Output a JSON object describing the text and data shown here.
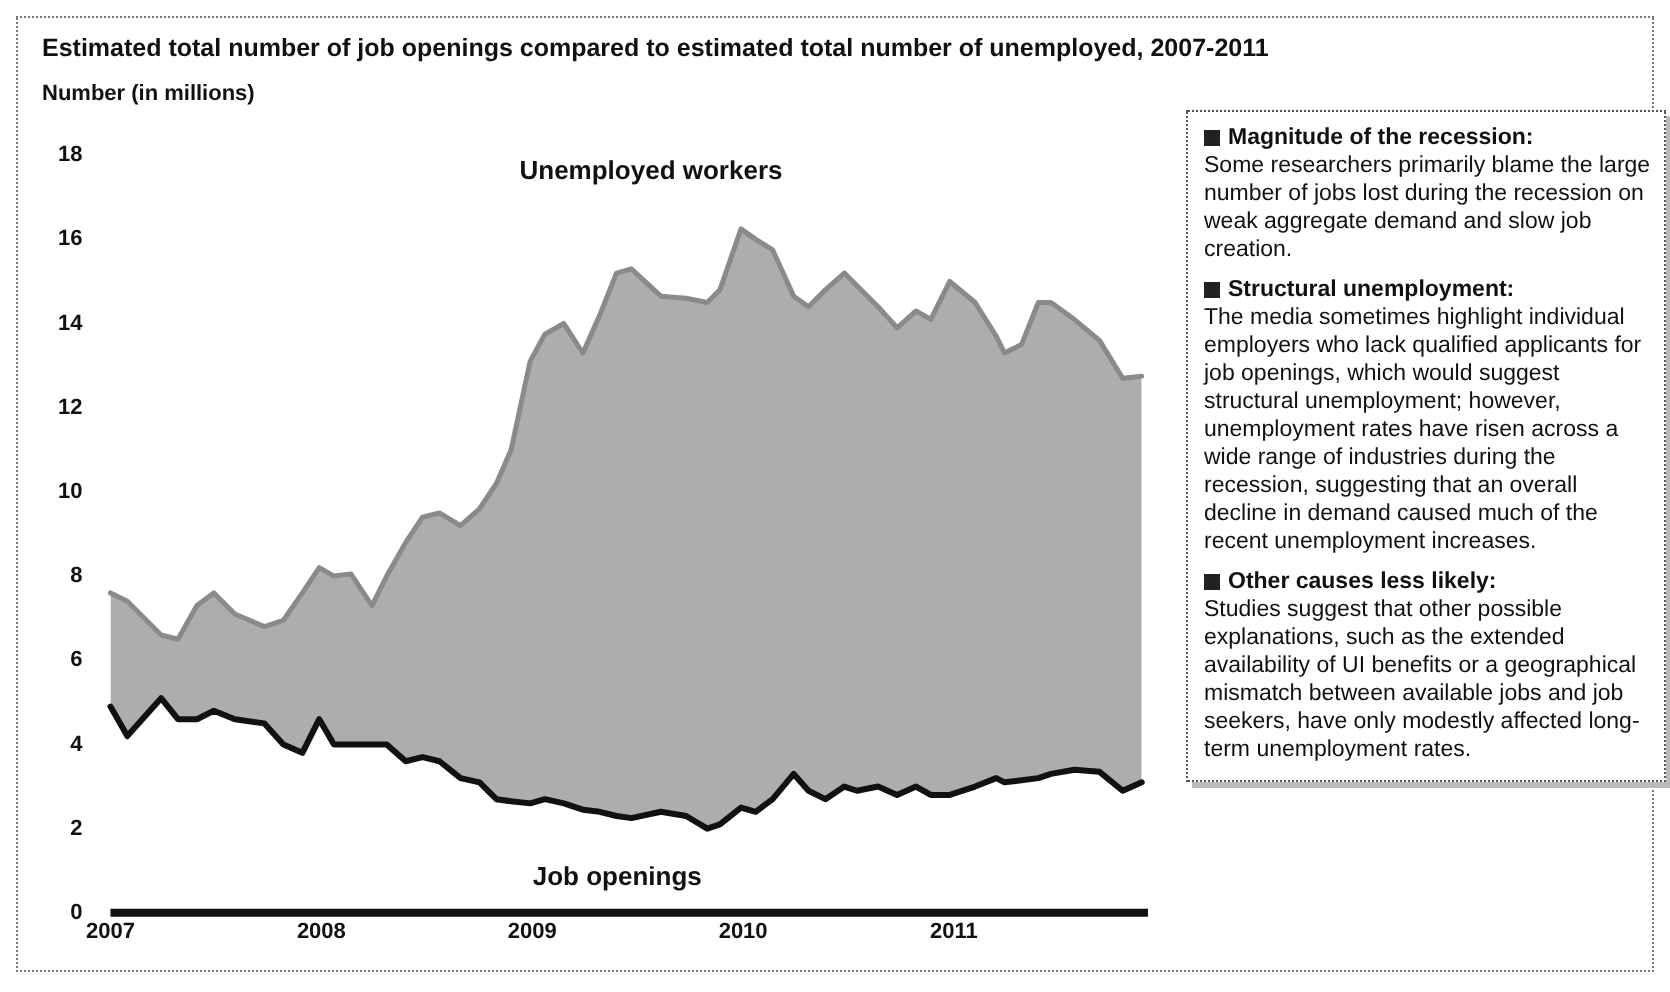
{
  "chart_data": {
    "type": "line",
    "title": "Estimated total number of job openings compared to estimated total number of unemployed, 2007-2011",
    "ylabel": "Number (in millions)",
    "xlim": [
      2007,
      2011.92
    ],
    "xticks": [
      2007,
      2008,
      2009,
      2010,
      2011
    ],
    "ylim": [
      0,
      18
    ],
    "yticks": [
      0,
      2,
      4,
      6,
      8,
      10,
      12,
      14,
      16,
      18
    ],
    "grid": false,
    "legend": false,
    "marker": "none",
    "line_style": "solid",
    "x": [
      2007.0,
      2007.08,
      2007.24,
      2007.32,
      2007.41,
      2007.49,
      2007.59,
      2007.73,
      2007.82,
      2007.91,
      2007.99,
      2008.06,
      2008.14,
      2008.24,
      2008.31,
      2008.4,
      2008.48,
      2008.56,
      2008.66,
      2008.75,
      2008.83,
      2008.9,
      2008.99,
      2009.06,
      2009.15,
      2009.24,
      2009.32,
      2009.4,
      2009.47,
      2009.61,
      2009.73,
      2009.83,
      2009.89,
      2009.99,
      2010.06,
      2010.14,
      2010.24,
      2010.31,
      2010.39,
      2010.48,
      2010.54,
      2010.64,
      2010.73,
      2010.82,
      2010.89,
      2010.98,
      2011.1,
      2011.2,
      2011.24,
      2011.32,
      2011.4,
      2011.46,
      2011.57,
      2011.69,
      2011.8,
      2011.89
    ],
    "series": [
      {
        "name": "Job openings",
        "color": "#111111",
        "values": [
          4.9,
          4.2,
          5.1,
          4.6,
          4.6,
          4.8,
          4.6,
          4.5,
          4.0,
          3.8,
          4.6,
          4.0,
          4.0,
          4.0,
          4.0,
          3.6,
          3.7,
          3.6,
          3.2,
          3.1,
          2.7,
          2.65,
          2.6,
          2.7,
          2.6,
          2.45,
          2.4,
          2.3,
          2.25,
          2.4,
          2.3,
          2.0,
          2.1,
          2.5,
          2.4,
          2.7,
          3.3,
          2.9,
          2.7,
          3.0,
          2.9,
          3.0,
          2.8,
          3.0,
          2.8,
          2.8,
          3.0,
          3.2,
          3.1,
          3.15,
          3.2,
          3.3,
          3.4,
          3.35,
          2.9,
          3.1
        ]
      },
      {
        "name": "Unemployed workers",
        "type": "area",
        "color": "#8a8a8a",
        "values": [
          7.6,
          7.4,
          6.6,
          6.5,
          7.3,
          7.6,
          7.1,
          6.8,
          6.95,
          7.6,
          8.2,
          8.0,
          8.05,
          7.3,
          8.0,
          8.8,
          9.4,
          9.5,
          9.2,
          9.6,
          10.2,
          11.0,
          13.1,
          13.75,
          14.0,
          13.3,
          14.2,
          15.2,
          15.3,
          14.65,
          14.6,
          14.5,
          14.8,
          16.25,
          16.0,
          15.75,
          14.65,
          14.4,
          14.8,
          15.2,
          14.9,
          14.4,
          13.9,
          14.3,
          14.1,
          15.0,
          14.5,
          13.7,
          13.3,
          13.5,
          14.5,
          14.5,
          14.1,
          13.6,
          12.7,
          12.75
        ]
      }
    ],
    "annotations": [
      "Magnitude of the recession:",
      "Some researchers primarily blame the large number of jobs lost during the recession on weak aggregate demand and slow job creation.",
      "Structural unemployment:",
      "The media sometimes highlight individual employers who lack qualified applicants for job openings, which would suggest structural unemployment; however, unemployment rates have risen across a wide range of industries during the recession, suggesting that an overall decline in demand caused much of the recent unemployment increases.",
      "Other causes less likely:",
      "Studies suggest that other possible explanations, such as the extended availability of UI benefits or a geographical mismatch between available jobs and job seekers, have only modestly affected long-term unemployment rates."
    ]
  }
}
